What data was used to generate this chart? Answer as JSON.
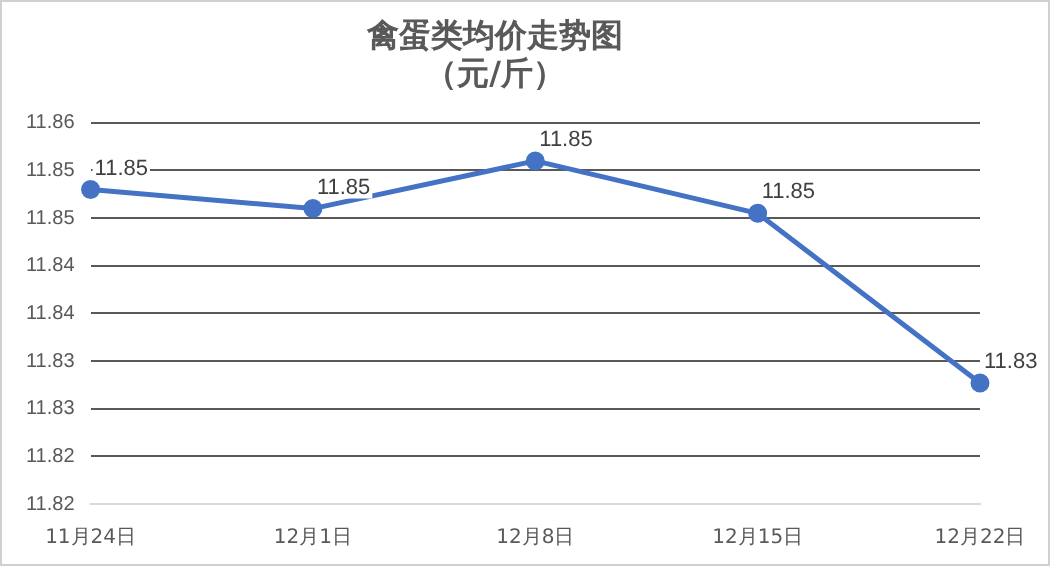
{
  "chart_data": {
    "type": "line",
    "title": [
      "禽蛋类均价走势图",
      "（元/斤）"
    ],
    "categories": [
      "11月24日",
      "12月1日",
      "12月8日",
      "12月15日",
      "12月22日"
    ],
    "series": [
      {
        "color": "#4472c4",
        "values": [
          11.853,
          11.851,
          11.856,
          11.8505,
          11.8327
        ]
      }
    ],
    "value_labels": [
      "11.85",
      "11.85",
      "11.85",
      "11.85",
      "11.83"
    ],
    "ylim": [
      11.82,
      11.86
    ],
    "yticks": [
      {
        "value": 11.82,
        "label": "11.82"
      },
      {
        "value": 11.825,
        "label": "11.82"
      },
      {
        "value": 11.83,
        "label": "11.83"
      },
      {
        "value": 11.835,
        "label": "11.83"
      },
      {
        "value": 11.84,
        "label": "11.84"
      },
      {
        "value": 11.845,
        "label": "11.84"
      },
      {
        "value": 11.85,
        "label": "11.85"
      },
      {
        "value": 11.855,
        "label": "11.85"
      },
      {
        "value": 11.86,
        "label": "11.86"
      }
    ],
    "grid": "y",
    "legend": false,
    "marker": "circle",
    "line_style": "solid"
  }
}
